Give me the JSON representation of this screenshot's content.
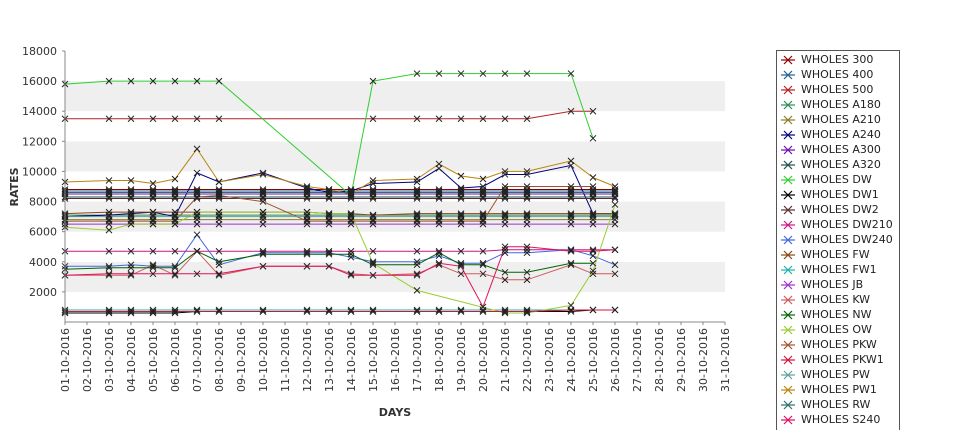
{
  "chart_data": {
    "type": "line",
    "xlabel": "DAYS",
    "ylabel": "RATES",
    "ylim": [
      0,
      18000
    ],
    "yticks": [
      2000,
      4000,
      6000,
      8000,
      10000,
      12000,
      14000,
      16000,
      18000
    ],
    "grid": "alternating horizontal bands",
    "legend_position": "right",
    "x": [
      "01-10-2016",
      "02-10-2016",
      "03-10-2016",
      "04-10-2016",
      "05-10-2016",
      "06-10-2016",
      "07-10-2016",
      "08-10-2016",
      "09-10-2016",
      "10-10-2016",
      "11-10-2016",
      "12-10-2016",
      "13-10-2016",
      "14-10-2016",
      "15-10-2016",
      "16-10-2016",
      "17-10-2016",
      "18-10-2016",
      "19-10-2016",
      "20-10-2016",
      "21-10-2016",
      "22-10-2016",
      "23-10-2016",
      "24-10-2016",
      "25-10-2016",
      "26-10-2016",
      "27-10-2016",
      "28-10-2016",
      "29-10-2016",
      "30-10-2016",
      "31-10-2016"
    ],
    "series": [
      {
        "name": "WHOLES 300",
        "color": "#8b0000",
        "values": [
          8800,
          null,
          8800,
          8800,
          8800,
          8800,
          8800,
          8800,
          null,
          8800,
          null,
          8800,
          8800,
          8800,
          8800,
          null,
          8800,
          8800,
          8800,
          8800,
          8800,
          8800,
          null,
          8800,
          8800,
          8800,
          null,
          null,
          null,
          null,
          null
        ]
      },
      {
        "name": "WHOLES 400",
        "color": "#1f5f8f",
        "values": [
          8700,
          null,
          8700,
          8700,
          8700,
          8700,
          8700,
          8700,
          null,
          8700,
          null,
          8700,
          8700,
          8700,
          8700,
          null,
          8700,
          8700,
          8700,
          8700,
          8700,
          8700,
          null,
          8700,
          8700,
          8700,
          null,
          null,
          null,
          null,
          null
        ]
      },
      {
        "name": "WHOLES 500",
        "color": "#b22222",
        "values": [
          13500,
          null,
          13500,
          13500,
          13500,
          13500,
          13500,
          13500,
          null,
          null,
          null,
          null,
          null,
          null,
          13500,
          null,
          13500,
          13500,
          13500,
          13500,
          13500,
          13500,
          null,
          14000,
          14000,
          null,
          null,
          null,
          null,
          null,
          null
        ]
      },
      {
        "name": "WHOLES A180",
        "color": "#2e8b57",
        "values": [
          7100,
          null,
          7100,
          7100,
          7100,
          7100,
          7100,
          7100,
          null,
          7100,
          null,
          7100,
          7100,
          7100,
          7100,
          null,
          7100,
          7100,
          7100,
          7100,
          7100,
          7100,
          null,
          7100,
          7100,
          7100,
          null,
          null,
          null,
          null,
          null
        ]
      },
      {
        "name": "WHOLES A210",
        "color": "#8b7d2a",
        "values": [
          6800,
          null,
          6800,
          6800,
          6800,
          6800,
          6800,
          6800,
          null,
          6800,
          null,
          6800,
          6800,
          6800,
          6800,
          null,
          6800,
          6800,
          6800,
          6800,
          6800,
          6800,
          null,
          6800,
          6800,
          6800,
          null,
          null,
          null,
          null,
          null
        ]
      },
      {
        "name": "WHOLES A240",
        "color": "#000080",
        "values": [
          7000,
          null,
          7100,
          7200,
          7300,
          7000,
          9900,
          9300,
          null,
          9900,
          null,
          8900,
          8600,
          8700,
          9200,
          null,
          9300,
          10200,
          8900,
          9000,
          9800,
          9800,
          null,
          10400,
          7200,
          7200,
          null,
          null,
          null,
          null,
          null
        ]
      },
      {
        "name": "WHOLES A300",
        "color": "#6a0dad",
        "values": [
          8500,
          null,
          8500,
          8500,
          8500,
          8500,
          8500,
          8500,
          null,
          8500,
          null,
          8500,
          8500,
          8500,
          8500,
          null,
          8500,
          8500,
          8500,
          8500,
          8500,
          8500,
          null,
          8500,
          8500,
          8500,
          null,
          null,
          null,
          null,
          null
        ]
      },
      {
        "name": "WHOLES A320",
        "color": "#1e4d4d",
        "values": [
          8300,
          null,
          8300,
          8300,
          8300,
          8300,
          8300,
          8300,
          null,
          8300,
          null,
          8300,
          8300,
          8300,
          8300,
          null,
          8300,
          8300,
          8300,
          8300,
          8300,
          8300,
          null,
          8300,
          8300,
          8300,
          null,
          null,
          null,
          null,
          null
        ]
      },
      {
        "name": "WHOLES DW",
        "color": "#32cd32",
        "values": [
          15800,
          null,
          16000,
          16000,
          16000,
          16000,
          16000,
          16000,
          null,
          null,
          null,
          null,
          null,
          8400,
          16000,
          null,
          16500,
          16500,
          16500,
          16500,
          16500,
          16500,
          null,
          16500,
          12200,
          null,
          null,
          null,
          null,
          null,
          null
        ]
      },
      {
        "name": "WHOLES DW1",
        "color": "#000000",
        "values": [
          600,
          null,
          600,
          600,
          600,
          600,
          700,
          700,
          null,
          700,
          null,
          700,
          700,
          700,
          700,
          null,
          700,
          700,
          700,
          700,
          700,
          700,
          null,
          700,
          800,
          800,
          null,
          null,
          null,
          null,
          null
        ]
      },
      {
        "name": "WHOLES DW2",
        "color": "#5a2e2e",
        "values": [
          8200,
          null,
          8200,
          8200,
          8200,
          8200,
          8200,
          8200,
          null,
          8200,
          null,
          8200,
          8200,
          8200,
          8200,
          null,
          8200,
          8200,
          8200,
          8200,
          8200,
          8200,
          null,
          8200,
          8200,
          8200,
          null,
          null,
          null,
          null,
          null
        ]
      },
      {
        "name": "WHOLES DW210",
        "color": "#c71585",
        "values": [
          4700,
          null,
          4700,
          4700,
          4700,
          4700,
          4700,
          4700,
          null,
          4700,
          null,
          4700,
          4700,
          4700,
          4700,
          null,
          4700,
          4700,
          4700,
          4700,
          4800,
          4800,
          null,
          4800,
          4800,
          4800,
          null,
          null,
          null,
          null,
          null
        ]
      },
      {
        "name": "WHOLES DW240",
        "color": "#4169e1",
        "values": [
          3700,
          null,
          3700,
          3800,
          3700,
          3700,
          5800,
          3800,
          null,
          4600,
          null,
          4600,
          4600,
          4300,
          4000,
          null,
          4000,
          4400,
          3900,
          3900,
          4600,
          4600,
          null,
          4800,
          4400,
          3800,
          null,
          null,
          null,
          null,
          null
        ]
      },
      {
        "name": "WHOLES FW",
        "color": "#8b4513",
        "values": [
          7200,
          null,
          7300,
          7300,
          7300,
          7300,
          7300,
          7300,
          null,
          7300,
          null,
          7300,
          7200,
          7200,
          7100,
          null,
          7200,
          7200,
          7200,
          7200,
          7200,
          7200,
          null,
          7200,
          7200,
          7200,
          null,
          null,
          null,
          null,
          null
        ]
      },
      {
        "name": "WHOLES FW1",
        "color": "#20b2aa",
        "values": [
          800,
          null,
          800,
          800,
          800,
          800,
          800,
          800,
          null,
          800,
          null,
          800,
          800,
          800,
          800,
          null,
          800,
          800,
          800,
          800,
          800,
          800,
          null,
          800,
          800,
          800,
          null,
          null,
          null,
          null,
          null
        ]
      },
      {
        "name": "WHOLES JB",
        "color": "#9932cc",
        "values": [
          6500,
          null,
          6500,
          6500,
          6500,
          6500,
          6500,
          6500,
          null,
          6500,
          null,
          6500,
          6500,
          6500,
          6500,
          null,
          6500,
          6500,
          6500,
          6500,
          6500,
          6500,
          null,
          6500,
          6500,
          6500,
          null,
          null,
          null,
          null,
          null
        ]
      },
      {
        "name": "WHOLES KW",
        "color": "#cd5c5c",
        "values": [
          3100,
          null,
          3100,
          3100,
          3800,
          3100,
          4700,
          3100,
          null,
          3700,
          null,
          3700,
          3700,
          3200,
          3100,
          null,
          3200,
          3800,
          3200,
          3200,
          2800,
          2800,
          null,
          3800,
          3200,
          3200,
          null,
          null,
          null,
          null,
          null
        ]
      },
      {
        "name": "WHOLES NW",
        "color": "#006400",
        "values": [
          3500,
          null,
          3600,
          3600,
          3600,
          3600,
          4700,
          4000,
          null,
          4500,
          null,
          4500,
          4500,
          4500,
          3800,
          null,
          3800,
          4600,
          3800,
          3800,
          3300,
          3300,
          null,
          3900,
          3900,
          null,
          null,
          null,
          null,
          null,
          null
        ]
      },
      {
        "name": "WHOLES OW",
        "color": "#9acd32",
        "values": [
          6300,
          null,
          6100,
          6500,
          6500,
          6500,
          7300,
          7300,
          null,
          7300,
          null,
          7300,
          7200,
          7200,
          3900,
          null,
          2100,
          null,
          null,
          null,
          600,
          600,
          null,
          1100,
          3400,
          7800,
          null,
          null,
          null,
          null,
          null
        ]
      },
      {
        "name": "WHOLES PKW",
        "color": "#a0522d",
        "values": [
          6700,
          null,
          6700,
          6700,
          6700,
          6700,
          8300,
          8400,
          null,
          8000,
          null,
          6700,
          6700,
          6700,
          6700,
          null,
          6700,
          6700,
          6700,
          6700,
          9000,
          9000,
          null,
          9000,
          9000,
          null,
          null,
          null,
          null,
          null,
          null
        ]
      },
      {
        "name": "WHOLES PKW1",
        "color": "#d2143a",
        "values": [
          700,
          null,
          700,
          700,
          700,
          700,
          700,
          700,
          null,
          700,
          null,
          700,
          700,
          700,
          700,
          null,
          700,
          700,
          700,
          700,
          700,
          700,
          null,
          800,
          800,
          800,
          null,
          null,
          null,
          null,
          null
        ]
      },
      {
        "name": "WHOLES PW",
        "color": "#5f9ea0",
        "values": [
          7000,
          null,
          7000,
          7000,
          7000,
          7000,
          7000,
          7000,
          null,
          7000,
          null,
          7000,
          7000,
          7000,
          7000,
          null,
          7000,
          7000,
          7000,
          7000,
          7000,
          7000,
          null,
          7000,
          7000,
          7000,
          null,
          null,
          null,
          null,
          null
        ]
      },
      {
        "name": "WHOLES PW1",
        "color": "#b8860b",
        "values": [
          9300,
          null,
          9400,
          9400,
          9200,
          9500,
          11500,
          9300,
          null,
          9800,
          null,
          9000,
          8800,
          8500,
          9400,
          null,
          9500,
          10500,
          9700,
          9500,
          10000,
          10000,
          null,
          10700,
          9600,
          9000,
          null,
          null,
          null,
          null,
          null
        ]
      },
      {
        "name": "WHOLES RW",
        "color": "#2f6f6f",
        "values": [
          8600,
          null,
          8600,
          8600,
          8600,
          8600,
          8600,
          8600,
          null,
          8600,
          null,
          8600,
          8600,
          8600,
          8600,
          null,
          8600,
          8600,
          8600,
          8600,
          8600,
          8600,
          null,
          8600,
          8600,
          8600,
          null,
          null,
          null,
          null,
          null
        ]
      },
      {
        "name": "WHOLES S240",
        "color": "#e0115f",
        "values": [
          3100,
          null,
          3200,
          3200,
          3200,
          3200,
          3200,
          3200,
          null,
          3700,
          null,
          3700,
          3700,
          3100,
          3100,
          null,
          3100,
          3900,
          3700,
          1000,
          5000,
          5000,
          null,
          4700,
          4700,
          4800,
          null,
          null,
          null,
          null,
          null
        ]
      }
    ]
  }
}
